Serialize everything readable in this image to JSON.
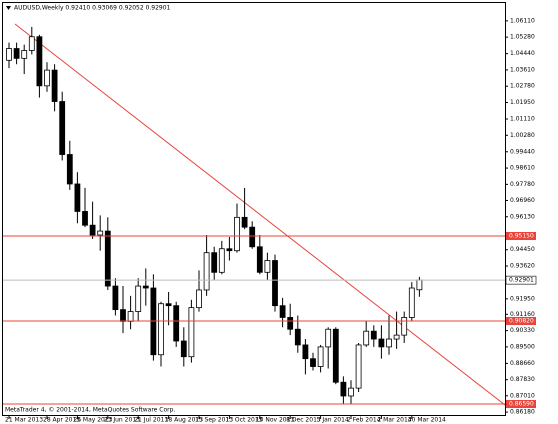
{
  "chart_data": {
    "type": "candlestick",
    "title": "AUDUSD,Weekly  0.92410 0.93069 0.92052 0.92901",
    "footer": "MetaTrader 4, © 2001-2014, MetaQuotes Software Corp.",
    "categories": [
      "21 Mar 2013",
      null,
      null,
      null,
      null,
      "28 Apr 2013",
      null,
      null,
      null,
      "26 May 2013",
      null,
      null,
      null,
      "23 Jun 2013",
      null,
      null,
      null,
      "21 Jul 2013",
      null,
      null,
      null,
      "18 Aug 2013",
      null,
      null,
      null,
      "15 Sep 2013",
      null,
      null,
      null,
      "13 Oct 2013",
      null,
      null,
      null,
      "10 Nov 2013",
      null,
      null,
      null,
      "8 Dec 2013",
      null,
      null,
      null,
      "5 Jan 2014",
      null,
      null,
      null,
      "2 Feb 2014",
      null,
      null,
      null,
      "2 Mar 2014",
      null,
      null,
      null,
      "30 Mar 2014",
      null
    ],
    "open": [
      1.041,
      1.047,
      1.042,
      1.046,
      1.053,
      1.028,
      1.036,
      1.02,
      0.993,
      0.978,
      0.964,
      0.957,
      0.952,
      0.954,
      0.926,
      0.914,
      0.908,
      0.913,
      0.926,
      0.925,
      0.891,
      0.917,
      0.916,
      0.898,
      0.89,
      0.915,
      0.924,
      0.943,
      0.933,
      0.945,
      0.944,
      0.961,
      0.956,
      0.946,
      0.933,
      0.939,
      0.916,
      0.91,
      0.904,
      0.896,
      0.889,
      0.885,
      0.895,
      0.904,
      0.877,
      0.87,
      0.874,
      0.896,
      0.903,
      0.899,
      0.895,
      0.899,
      0.901,
      0.91,
      0.9241
    ],
    "high": [
      1.05,
      1.05,
      1.049,
      1.058,
      1.054,
      1.04,
      1.039,
      1.025,
      1.0,
      0.984,
      0.976,
      0.969,
      0.962,
      0.961,
      0.93,
      0.926,
      0.921,
      0.93,
      0.935,
      0.932,
      0.918,
      0.923,
      0.918,
      0.905,
      0.919,
      0.934,
      0.952,
      0.946,
      0.949,
      0.951,
      0.968,
      0.976,
      0.959,
      0.952,
      0.943,
      0.942,
      0.92,
      0.917,
      0.911,
      0.899,
      0.892,
      0.896,
      0.905,
      0.905,
      0.88,
      0.878,
      0.897,
      0.908,
      0.906,
      0.906,
      0.911,
      0.913,
      0.913,
      0.928,
      0.93069
    ],
    "low": [
      1.037,
      1.039,
      1.034,
      1.044,
      1.022,
      1.025,
      1.015,
      0.99,
      0.975,
      0.958,
      0.956,
      0.95,
      0.944,
      0.924,
      0.911,
      0.902,
      0.904,
      0.908,
      0.916,
      0.888,
      0.885,
      0.906,
      0.895,
      0.885,
      0.887,
      0.913,
      0.921,
      0.929,
      0.932,
      0.939,
      0.943,
      0.955,
      0.945,
      0.932,
      0.929,
      0.913,
      0.905,
      0.901,
      0.892,
      0.881,
      0.883,
      0.882,
      0.884,
      0.876,
      0.866,
      0.866,
      0.872,
      0.895,
      0.895,
      0.889,
      0.891,
      0.894,
      0.897,
      0.908,
      0.92052
    ],
    "close": [
      1.047,
      1.042,
      1.046,
      1.053,
      1.028,
      1.036,
      1.02,
      0.993,
      0.978,
      0.964,
      0.957,
      0.952,
      0.954,
      0.926,
      0.914,
      0.908,
      0.913,
      0.926,
      0.925,
      0.891,
      0.917,
      0.916,
      0.898,
      0.89,
      0.915,
      0.924,
      0.943,
      0.933,
      0.945,
      0.944,
      0.961,
      0.956,
      0.946,
      0.933,
      0.939,
      0.916,
      0.91,
      0.904,
      0.896,
      0.889,
      0.885,
      0.895,
      0.904,
      0.877,
      0.87,
      0.874,
      0.896,
      0.903,
      0.899,
      0.895,
      0.899,
      0.901,
      0.91,
      0.925,
      0.92901
    ],
    "up_color": "#ffffff",
    "down_color": "#000000",
    "ylim": [
      0.8598,
      1.0707
    ],
    "yticks": [
      {
        "value": 1.0611,
        "label": "1.06110"
      },
      {
        "value": 1.0528,
        "label": "1.05280"
      },
      {
        "value": 1.0444,
        "label": "1.04440"
      },
      {
        "value": 1.0361,
        "label": "1.03610"
      },
      {
        "value": 1.0278,
        "label": "1.02780"
      },
      {
        "value": 1.0195,
        "label": "1.01950"
      },
      {
        "value": 1.0111,
        "label": "1.01110"
      },
      {
        "value": 1.0028,
        "label": "1.00280"
      },
      {
        "value": 0.9944,
        "label": "0.99440"
      },
      {
        "value": 0.9861,
        "label": "0.98610"
      },
      {
        "value": 0.9778,
        "label": "0.97780"
      },
      {
        "value": 0.9696,
        "label": "0.96960"
      },
      {
        "value": 0.9613,
        "label": "0.96130"
      },
      {
        "value": 0.9445,
        "label": "0.94450"
      },
      {
        "value": 0.9362,
        "label": "0.93620"
      },
      {
        "value": 0.9195,
        "label": "0.91950"
      },
      {
        "value": 0.9116,
        "label": "0.91160"
      },
      {
        "value": 0.9033,
        "label": "0.90330"
      },
      {
        "value": 0.895,
        "label": "0.89500"
      },
      {
        "value": 0.8866,
        "label": "0.88660"
      },
      {
        "value": 0.8783,
        "label": "0.87830"
      },
      {
        "value": 0.8701,
        "label": "0.87010"
      },
      {
        "value": 0.8618,
        "label": "0.86180"
      }
    ],
    "price_line": {
      "value": 0.92901,
      "label": "0.92901"
    },
    "levels": [
      {
        "value": 0.9515,
        "label": "0.95150"
      },
      {
        "value": 0.9082,
        "label": "0.90820"
      },
      {
        "value": 0.8659,
        "label": "0.86590"
      }
    ],
    "level_color": "#e8443a"
  }
}
